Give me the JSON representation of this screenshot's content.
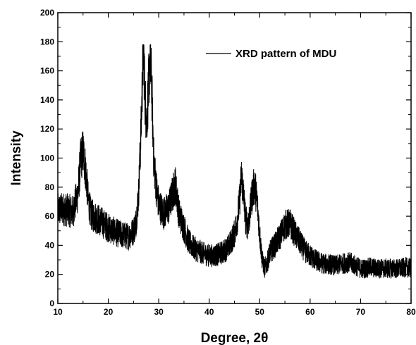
{
  "chart_data": {
    "type": "line",
    "title": "",
    "xlabel": "Degree, 2θ",
    "ylabel": "Intensity",
    "xlim": [
      10,
      80
    ],
    "ylim": [
      0,
      200
    ],
    "x_ticks": [
      10,
      20,
      30,
      40,
      50,
      60,
      70,
      80
    ],
    "y_ticks": [
      0,
      20,
      40,
      60,
      80,
      100,
      120,
      140,
      160,
      180,
      200
    ],
    "grid": false,
    "legend_position": "top-right",
    "line_color": "#000000",
    "series": [
      {
        "name": "XRD pattern of MDU",
        "x": [
          10,
          11,
          12,
          13,
          14,
          14.5,
          15,
          15.5,
          16,
          16.5,
          17,
          18,
          19,
          20,
          21,
          22,
          23,
          24,
          25,
          25.5,
          26,
          26.5,
          26.8,
          27,
          27.3,
          27.6,
          28,
          28.3,
          28.6,
          29,
          29.5,
          30,
          31,
          32,
          32.7,
          33.3,
          34,
          35,
          36,
          37,
          38,
          39,
          40,
          41,
          42,
          43,
          44,
          45,
          45.5,
          46,
          46.4,
          46.8,
          47.2,
          47.6,
          48,
          48.5,
          49,
          49.5,
          50,
          50.5,
          51,
          51.5,
          52,
          53,
          54,
          55,
          56,
          57,
          58,
          59,
          60,
          61,
          62,
          63,
          64,
          65,
          66,
          67,
          68,
          69,
          70,
          71,
          72,
          73,
          74,
          75,
          76,
          77,
          78,
          79,
          80
        ],
        "y": [
          64,
          65,
          64,
          63,
          76,
          98,
          105,
          92,
          72,
          62,
          60,
          58,
          55,
          52,
          50,
          48,
          47,
          46,
          50,
          56,
          75,
          120,
          160,
          174,
          140,
          125,
          150,
          168,
          150,
          100,
          80,
          68,
          62,
          66,
          75,
          82,
          62,
          52,
          42,
          38,
          36,
          34,
          33,
          33,
          34,
          36,
          40,
          48,
          56,
          70,
          88,
          75,
          58,
          54,
          60,
          75,
          82,
          70,
          48,
          30,
          24,
          28,
          35,
          40,
          46,
          54,
          55,
          48,
          42,
          36,
          33,
          30,
          28,
          27,
          27,
          26,
          27,
          28,
          28,
          26,
          24,
          24,
          25,
          24,
          24,
          24,
          24,
          24,
          24,
          25,
          24
        ]
      }
    ]
  }
}
